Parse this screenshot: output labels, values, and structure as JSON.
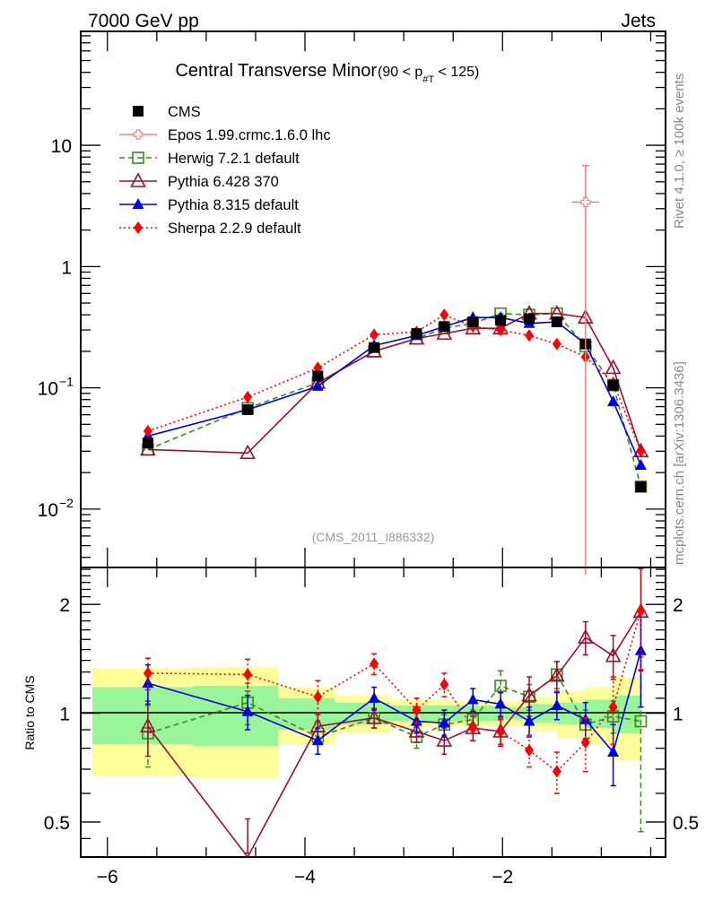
{
  "header": {
    "left": "7000 GeV pp",
    "right": "Jets"
  },
  "side_labels": {
    "rivet": "Rivet 4.1.0, ≥ 100k events",
    "mcplots": "mcplots.cern.ch [arXiv:1306.3436]"
  },
  "chart_data": {
    "type": "scatter",
    "title": "Central Transverse Minor",
    "title_suffix": "(90 < p",
    "title_sub": "#T",
    "title_end": " < 125)",
    "analysis_id": "(CMS_2011_I886332)",
    "xlabel": "",
    "ylabel_ratio": "Ratio to CMS",
    "xlim": [
      -6.27,
      -0.35
    ],
    "main_ylim": [
      0.0033,
      87
    ],
    "main_yscale": "log",
    "ratio_ylim": [
      0.4,
      2.53
    ],
    "ratio_yscale": "log",
    "x_ticks": [
      {
        "v": -6,
        "label": "−6"
      },
      {
        "v": -4,
        "label": "−4"
      },
      {
        "v": -2,
        "label": "−2"
      }
    ],
    "main_y_ticks": [
      {
        "v": 10,
        "label": "10",
        "exp": ""
      },
      {
        "v": 1,
        "label": "1",
        "exp": ""
      },
      {
        "v": 0.1,
        "label": "10",
        "exp": "−1"
      },
      {
        "v": 0.01,
        "label": "10",
        "exp": "−2"
      }
    ],
    "ratio_y_ticks": [
      {
        "v": 2,
        "label": "2"
      },
      {
        "v": 1,
        "label": "1"
      },
      {
        "v": 0.5,
        "label": "0.5"
      }
    ],
    "bin_edges": [
      -6.27,
      -5.14,
      -4.27,
      -3.7,
      -3.14,
      -2.84,
      -2.57,
      -2.27,
      -2.0,
      -1.73,
      -1.45,
      -1.17,
      -0.88,
      -0.6,
      -0.35
    ],
    "x": [
      -5.59,
      -4.58,
      -3.87,
      -3.3,
      -2.87,
      -2.59,
      -2.3,
      -2.02,
      -1.73,
      -1.45,
      -1.16,
      -0.88,
      -0.6
    ],
    "band_inner": [
      0.18,
      0.19,
      0.1,
      0.07,
      0.05,
      0.05,
      0.05,
      0.05,
      0.04,
      0.06,
      0.07,
      0.09,
      0.12
    ],
    "band_outer": [
      0.33,
      0.34,
      0.18,
      0.12,
      0.09,
      0.09,
      0.08,
      0.08,
      0.08,
      0.11,
      0.15,
      0.18,
      0.26
    ],
    "legend": [
      {
        "name": "CMS",
        "color": "#000000",
        "marker": "square-filled",
        "line": "none"
      },
      {
        "name": "Epos 1.99.crmc.1.6.0 lhc",
        "color": "#f08080",
        "marker": "cross-open",
        "line": "solid"
      },
      {
        "name": "Herwig 7.2.1 default",
        "color": "#3a8a1a",
        "marker": "square-open",
        "line": "dashed"
      },
      {
        "name": "Pythia 6.428 370",
        "color": "#9b1030",
        "marker": "triangle-open",
        "line": "solid"
      },
      {
        "name": "Pythia 8.315 default",
        "color": "#0000e0",
        "marker": "triangle-filled",
        "line": "solid"
      },
      {
        "name": "Sherpa 2.2.9 default",
        "color": "#ff0000",
        "marker": "diamond-filled",
        "line": "dotted"
      }
    ],
    "series": [
      {
        "name": "CMS",
        "values": [
          0.035,
          0.066,
          0.125,
          0.215,
          0.28,
          0.32,
          0.35,
          0.36,
          0.37,
          0.35,
          0.23,
          0.105,
          0.0153
        ],
        "ratio": [
          1,
          1,
          1,
          1,
          1,
          1,
          1,
          1,
          1,
          1,
          1,
          1,
          1
        ],
        "ratio_err": [
          0,
          0,
          0,
          0,
          0,
          0,
          0,
          0,
          0,
          0,
          0,
          0,
          0
        ]
      },
      {
        "name": "Epos 1.99.crmc.1.6.0 lhc",
        "points": [
          {
            "x": -1.16,
            "xerr": 0.14,
            "value": 3.4,
            "err_up": 3.4,
            "err_down": 3.39
          }
        ]
      },
      {
        "name": "Herwig 7.2.1 default",
        "values": [
          0.031,
          0.068,
          0.11,
          0.2,
          0.255,
          0.31,
          0.34,
          0.41,
          0.4,
          0.41,
          0.22,
          0.105,
          0.0153
        ],
        "ratio": [
          0.88,
          1.07,
          0.86,
          0.97,
          0.86,
          0.93,
          0.96,
          1.19,
          1.11,
          1.28,
          0.93,
          0.98,
          0.95
        ],
        "ratio_err": [
          0.17,
          0.14,
          0.09,
          0.06,
          0.06,
          0.06,
          0.06,
          0.12,
          0.09,
          0.11,
          0.09,
          0.1,
          0.48
        ]
      },
      {
        "name": "Pythia 6.428 370",
        "values": [
          0.031,
          0.029,
          0.11,
          0.2,
          0.255,
          0.28,
          0.31,
          0.31,
          0.41,
          0.41,
          0.38,
          0.146,
          0.03
        ],
        "ratio": [
          0.92,
          0.38,
          0.92,
          0.97,
          0.89,
          0.84,
          0.91,
          0.89,
          1.12,
          1.27,
          1.62,
          1.44,
          1.91
        ],
        "ratio_err": [
          0.16,
          0.13,
          0.08,
          0.06,
          0.06,
          0.07,
          0.07,
          0.08,
          0.14,
          0.12,
          0.17,
          0.2,
          0.6
        ]
      },
      {
        "name": "Pythia 8.315 default",
        "values": [
          0.04,
          0.066,
          0.103,
          0.223,
          0.27,
          0.32,
          0.38,
          0.38,
          0.34,
          0.35,
          0.23,
          0.077,
          0.023
        ],
        "ratio": [
          1.21,
          1.01,
          0.84,
          1.1,
          0.95,
          0.94,
          1.09,
          1.06,
          0.95,
          1.05,
          0.96,
          0.78,
          1.49
        ],
        "ratio_err": [
          0.15,
          0.11,
          0.07,
          0.08,
          0.07,
          0.08,
          0.08,
          0.08,
          0.09,
          0.09,
          0.11,
          0.15,
          0.45
        ]
      },
      {
        "name": "Sherpa 2.2.9 default",
        "values": [
          0.044,
          0.084,
          0.146,
          0.274,
          0.29,
          0.4,
          0.32,
          0.3,
          0.27,
          0.23,
          0.18,
          0.11,
          0.03
        ],
        "ratio": [
          1.29,
          1.28,
          1.11,
          1.37,
          1.02,
          1.2,
          0.91,
          0.89,
          0.79,
          0.69,
          0.83,
          1.04,
          1.92
        ],
        "ratio_err": [
          0.13,
          0.13,
          0.12,
          0.09,
          0.08,
          0.09,
          0.07,
          0.07,
          0.08,
          0.09,
          0.14,
          0.22,
          0.6
        ]
      }
    ]
  }
}
